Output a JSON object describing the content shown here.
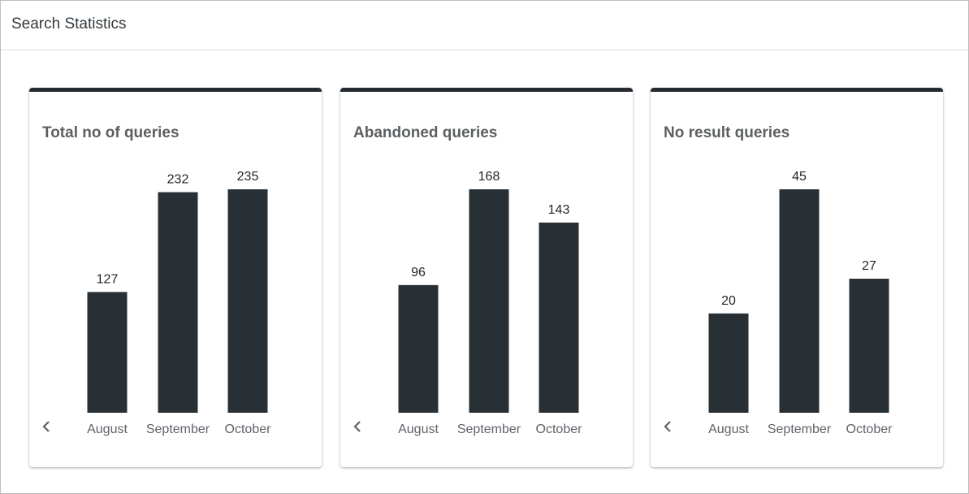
{
  "page": {
    "title": "Search Statistics"
  },
  "theme": {
    "bar_color": "#283036",
    "card_accent": "#252b30"
  },
  "chart_data": [
    {
      "type": "bar",
      "title": "Total no of queries",
      "categories": [
        "August",
        "September",
        "October"
      ],
      "values": [
        127,
        232,
        235
      ],
      "ylim": [
        0,
        235
      ]
    },
    {
      "type": "bar",
      "title": "Abandoned queries",
      "categories": [
        "August",
        "September",
        "October"
      ],
      "values": [
        96,
        168,
        143
      ],
      "ylim": [
        0,
        168
      ]
    },
    {
      "type": "bar",
      "title": "No result queries",
      "categories": [
        "August",
        "September",
        "October"
      ],
      "values": [
        20,
        45,
        27
      ],
      "ylim": [
        0,
        45
      ]
    }
  ],
  "icons": {
    "prev": "chevron-left-icon"
  }
}
